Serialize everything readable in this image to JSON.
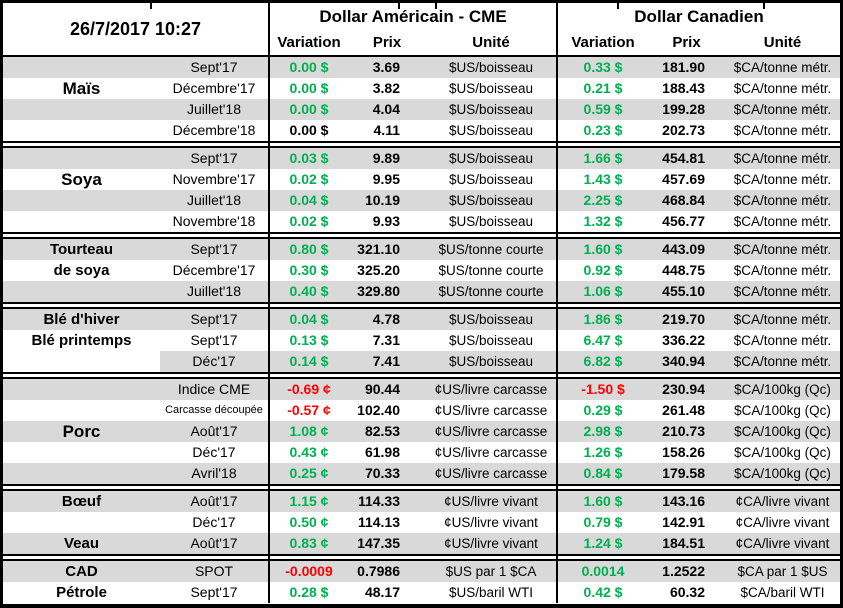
{
  "meta": {
    "timestamp": "26/7/2017 10:27"
  },
  "colors": {
    "green": "#00B050",
    "red": "#FF0000",
    "row_gray": "#D9D9D9",
    "border": "#000000"
  },
  "header": {
    "us_group": "Dollar Américain - CME",
    "ca_group": "Dollar Canadien",
    "columns": {
      "variation": "Variation",
      "prix": "Prix",
      "unite": "Unité"
    }
  },
  "sections": [
    {
      "labels": [
        {
          "row": 1,
          "text": "Maïs",
          "size": "lg"
        }
      ],
      "rows": [
        {
          "contract": "Sept'17",
          "us_var": "0.00 $",
          "us_color": "green",
          "us_prix": "3.69",
          "us_unit": "$US/boisseau",
          "ca_var": "0.33 $",
          "ca_color": "green",
          "ca_prix": "181.90",
          "ca_unit": "$CA/tonne métr."
        },
        {
          "contract": "Décembre'17",
          "us_var": "0.00 $",
          "us_color": "green",
          "us_prix": "3.82",
          "us_unit": "$US/boisseau",
          "ca_var": "0.21 $",
          "ca_color": "green",
          "ca_prix": "188.43",
          "ca_unit": "$CA/tonne métr."
        },
        {
          "contract": "Juillet'18",
          "us_var": "0.00 $",
          "us_color": "green",
          "us_prix": "4.04",
          "us_unit": "$US/boisseau",
          "ca_var": "0.59 $",
          "ca_color": "green",
          "ca_prix": "199.28",
          "ca_unit": "$CA/tonne métr."
        },
        {
          "contract": "Décembre'18",
          "us_var": "0.00 $",
          "us_color": "black",
          "us_prix": "4.11",
          "us_unit": "$US/boisseau",
          "ca_var": "0.23 $",
          "ca_color": "green",
          "ca_prix": "202.73",
          "ca_unit": "$CA/tonne métr."
        }
      ]
    },
    {
      "labels": [
        {
          "row": 1,
          "text": "Soya",
          "size": "lg"
        }
      ],
      "rows": [
        {
          "contract": "Sept'17",
          "us_var": "0.03 $",
          "us_color": "green",
          "us_prix": "9.89",
          "us_unit": "$US/boisseau",
          "ca_var": "1.66 $",
          "ca_color": "green",
          "ca_prix": "454.81",
          "ca_unit": "$CA/tonne métr."
        },
        {
          "contract": "Novembre'17",
          "us_var": "0.02 $",
          "us_color": "green",
          "us_prix": "9.95",
          "us_unit": "$US/boisseau",
          "ca_var": "1.43 $",
          "ca_color": "green",
          "ca_prix": "457.69",
          "ca_unit": "$CA/tonne métr."
        },
        {
          "contract": "Juillet'18",
          "us_var": "0.04 $",
          "us_color": "green",
          "us_prix": "10.19",
          "us_unit": "$US/boisseau",
          "ca_var": "2.25 $",
          "ca_color": "green",
          "ca_prix": "468.84",
          "ca_unit": "$CA/tonne métr."
        },
        {
          "contract": "Novembre'18",
          "us_var": "0.02 $",
          "us_color": "green",
          "us_prix": "9.93",
          "us_unit": "$US/boisseau",
          "ca_var": "1.32 $",
          "ca_color": "green",
          "ca_prix": "456.77",
          "ca_unit": "$CA/tonne métr."
        }
      ]
    },
    {
      "labels": [
        {
          "row": 0,
          "text": "Tourteau"
        },
        {
          "row": 1,
          "text": "de soya"
        }
      ],
      "rows": [
        {
          "contract": "Sept'17",
          "us_var": "0.80 $",
          "us_color": "green",
          "us_prix": "321.10",
          "us_unit": "$US/tonne courte",
          "ca_var": "1.60 $",
          "ca_color": "green",
          "ca_prix": "443.09",
          "ca_unit": "$CA/tonne métr."
        },
        {
          "contract": "Décembre'17",
          "us_var": "0.30 $",
          "us_color": "green",
          "us_prix": "325.20",
          "us_unit": "$US/tonne courte",
          "ca_var": "0.92 $",
          "ca_color": "green",
          "ca_prix": "448.75",
          "ca_unit": "$CA/tonne métr."
        },
        {
          "contract": "Juillet'18",
          "us_var": "0.40 $",
          "us_color": "green",
          "us_prix": "329.80",
          "us_unit": "$US/tonne courte",
          "ca_var": "1.06 $",
          "ca_color": "green",
          "ca_prix": "455.10",
          "ca_unit": "$CA/tonne métr."
        }
      ]
    },
    {
      "labels": [
        {
          "row": 0,
          "text": "Blé d'hiver"
        },
        {
          "row": 1,
          "text": "Blé printemps"
        }
      ],
      "rows": [
        {
          "contract": "Sept'17",
          "us_var": "0.04 $",
          "us_color": "green",
          "us_prix": "4.78",
          "us_unit": "$US/boisseau",
          "ca_var": "1.86 $",
          "ca_color": "green",
          "ca_prix": "219.70",
          "ca_unit": "$CA/tonne métr."
        },
        {
          "contract": "Sept'17",
          "us_var": "0.13 $",
          "us_color": "green",
          "us_prix": "7.31",
          "us_unit": "$US/boisseau",
          "ca_var": "6.47 $",
          "ca_color": "green",
          "ca_prix": "336.22",
          "ca_unit": "$CA/tonne métr."
        },
        {
          "contract": "Déc'17",
          "us_var": "0.14 $",
          "us_color": "green",
          "us_prix": "7.41",
          "us_unit": "$US/boisseau",
          "ca_var": "6.82 $",
          "ca_color": "green",
          "ca_prix": "340.94",
          "ca_unit": "$CA/tonne métr.",
          "label_white": true
        }
      ]
    },
    {
      "labels": [
        {
          "row": 2,
          "text": "Porc",
          "size": "lg"
        }
      ],
      "rows": [
        {
          "contract": "Indice CME",
          "us_var": "-0.69 ¢",
          "us_color": "red",
          "us_prix": "90.44",
          "us_unit": "¢US/livre carcasse",
          "ca_var": "-1.50 $",
          "ca_color": "red",
          "ca_prix": "230.94",
          "ca_unit": "$CA/100kg (Qc)"
        },
        {
          "contract": "Carcasse découpée",
          "us_var": "-0.57 ¢",
          "us_color": "red",
          "us_prix": "102.40",
          "us_unit": "¢US/livre carcasse",
          "ca_var": "0.29 $",
          "ca_color": "green",
          "ca_prix": "261.48",
          "ca_unit": "$CA/100kg (Qc)",
          "small": true
        },
        {
          "contract": "Août'17",
          "us_var": "1.08 ¢",
          "us_color": "green",
          "us_prix": "82.53",
          "us_unit": "¢US/livre carcasse",
          "ca_var": "2.98 $",
          "ca_color": "green",
          "ca_prix": "210.73",
          "ca_unit": "$CA/100kg (Qc)"
        },
        {
          "contract": "Déc'17",
          "us_var": "0.43 ¢",
          "us_color": "green",
          "us_prix": "61.98",
          "us_unit": "¢US/livre carcasse",
          "ca_var": "1.26 $",
          "ca_color": "green",
          "ca_prix": "158.26",
          "ca_unit": "$CA/100kg (Qc)"
        },
        {
          "contract": "Avril'18",
          "us_var": "0.25 ¢",
          "us_color": "green",
          "us_prix": "70.33",
          "us_unit": "¢US/livre carcasse",
          "ca_var": "0.84 $",
          "ca_color": "green",
          "ca_prix": "179.58",
          "ca_unit": "$CA/100kg (Qc)"
        }
      ]
    },
    {
      "labels": [
        {
          "row": 0,
          "text": "Bœuf"
        },
        {
          "row": 2,
          "text": "Veau"
        }
      ],
      "rows": [
        {
          "contract": "Août'17",
          "us_var": "1.15 ¢",
          "us_color": "green",
          "us_prix": "114.33",
          "us_unit": "¢US/livre vivant",
          "ca_var": "1.60 $",
          "ca_color": "green",
          "ca_prix": "143.16",
          "ca_unit": "¢CA/livre vivant"
        },
        {
          "contract": "Déc'17",
          "us_var": "0.50 ¢",
          "us_color": "green",
          "us_prix": "114.13",
          "us_unit": "¢US/livre vivant",
          "ca_var": "0.79 $",
          "ca_color": "green",
          "ca_prix": "142.91",
          "ca_unit": "¢CA/livre vivant"
        },
        {
          "contract": "Août'17",
          "us_var": "0.83 ¢",
          "us_color": "green",
          "us_prix": "147.35",
          "us_unit": "¢US/livre vivant",
          "ca_var": "1.24 $",
          "ca_color": "green",
          "ca_prix": "184.51",
          "ca_unit": "¢CA/livre vivant"
        }
      ]
    },
    {
      "labels": [
        {
          "row": 0,
          "text": "CAD"
        },
        {
          "row": 1,
          "text": "Pétrole"
        }
      ],
      "rows": [
        {
          "contract": "SPOT",
          "us_var": "-0.0009",
          "us_color": "red",
          "us_prix": "0.7986",
          "us_unit": "$US par 1 $CA",
          "ca_var": "0.0014",
          "ca_color": "green",
          "ca_prix": "1.2522",
          "ca_unit": "$CA par 1 $US"
        },
        {
          "contract": "Sept'17",
          "us_var": "0.28 $",
          "us_color": "green",
          "us_prix": "48.17",
          "us_unit": "$US/baril WTI",
          "ca_var": "0.42 $",
          "ca_color": "green",
          "ca_prix": "60.32",
          "ca_unit": "$CA/baril WTI"
        }
      ]
    }
  ]
}
